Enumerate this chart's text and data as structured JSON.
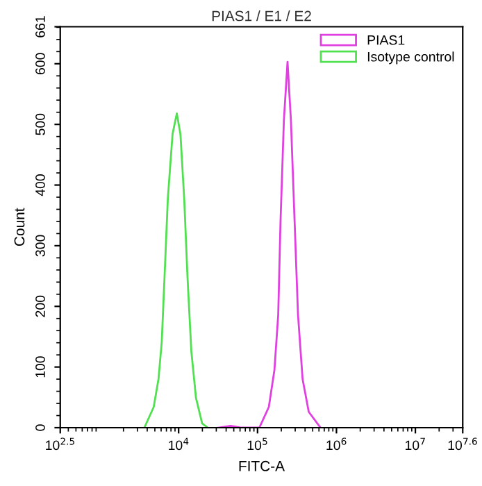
{
  "chart_data": {
    "type": "line",
    "title": "PIAS1 / E1 / E2",
    "xlabel": "FITC-A",
    "ylabel": "Count",
    "log": "x",
    "xlim": [
      316.2,
      39810717
    ],
    "xticks": [
      {
        "value": 316.2,
        "label": "10$^{2.5}$"
      },
      {
        "value": 10000,
        "label": "10$^{4}$"
      },
      {
        "value": 100000,
        "label": "10$^{5}$"
      },
      {
        "value": 1000000,
        "label": "10$^{6}$"
      },
      {
        "value": 10000000,
        "label": "10$^{7}$"
      },
      {
        "value": 39810717,
        "label": "10$^{7.6}$"
      }
    ],
    "ylim": [
      0,
      661
    ],
    "yticks": [
      0,
      100,
      200,
      300,
      400,
      500,
      600,
      661
    ],
    "legend": "top right",
    "grid": false,
    "series": [
      {
        "name": "PIAS1",
        "color": "#e040e0",
        "x": [
          31623,
          45709,
          63096,
          105441,
          139000,
          163682,
          182810,
          195434,
          215774,
          239883,
          264850,
          295121,
          325837,
          372392,
          445656,
          628058
        ],
        "values": [
          0,
          3,
          0,
          0,
          34,
          95,
          186,
          339,
          507,
          603,
          507,
          339,
          186,
          80,
          26,
          0
        ]
      },
      {
        "name": "Isotype control",
        "color": "#50e050",
        "x": [
          3681,
          4831,
          5559,
          6109,
          6622,
          7295,
          8375,
          9484,
          10544,
          11776,
          12972,
          14488,
          16596,
          19861,
          23442
        ],
        "values": [
          0,
          34,
          80,
          141,
          247,
          377,
          484,
          518,
          484,
          377,
          247,
          126,
          49,
          7,
          0
        ]
      }
    ]
  }
}
